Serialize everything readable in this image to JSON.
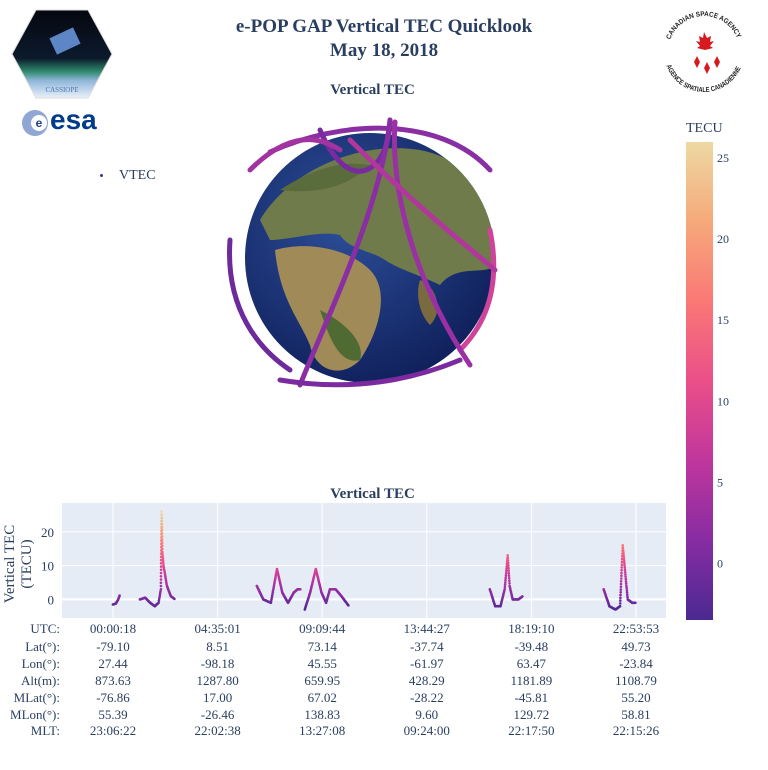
{
  "header": {
    "title_line1": "e-POP GAP Vertical TEC Quicklook",
    "title_line2": "May 18, 2018"
  },
  "logos": {
    "cassiope": "CASSIOPE",
    "esa": "esa",
    "csa_top": "CANADIAN SPACE AGENCY",
    "csa_bottom": "AGENCE SPATIALE CANADIENNE"
  },
  "globe": {
    "title": "Vertical TEC"
  },
  "legend": {
    "label": "VTEC"
  },
  "colorbar": {
    "title": "TECU",
    "ticks": [
      0,
      5,
      10,
      15,
      20,
      25
    ],
    "range": [
      -3.5,
      26
    ],
    "colors": [
      "#4b2991",
      "#872ca2",
      "#c0369d",
      "#ea4f88",
      "#fa7876",
      "#f6a97a",
      "#edd9a3"
    ]
  },
  "chart_data": {
    "type": "scatter",
    "title": "Vertical TEC",
    "ylabel": "Vertical TEC (TECU)",
    "ylim": [
      -5.5,
      28.5
    ],
    "yticks": [
      0,
      10,
      20
    ],
    "grid": true,
    "color_by": "TEC value",
    "passes": [
      [
        [
          "00:00",
          -1.5
        ],
        [
          "00:08",
          -1.2
        ],
        [
          "00:14",
          0
        ],
        [
          "00:19",
          1.5
        ]
      ],
      [
        [
          "01:11",
          0
        ],
        [
          "01:25",
          0.5
        ],
        [
          "01:38",
          -1
        ],
        [
          "01:50",
          -2
        ],
        [
          "02:00",
          -1
        ],
        [
          "02:06",
          3
        ],
        [
          "02:08",
          26
        ],
        [
          "02:10",
          14
        ],
        [
          "02:13",
          10
        ],
        [
          "02:22",
          4
        ],
        [
          "02:32",
          1
        ],
        [
          "02:43",
          0
        ]
      ],
      [
        [
          "06:18",
          4
        ],
        [
          "06:35",
          0
        ],
        [
          "06:55",
          -1
        ],
        [
          "07:11",
          9
        ],
        [
          "07:25",
          2
        ],
        [
          "07:40",
          -1
        ],
        [
          "07:55",
          2
        ],
        [
          "08:05",
          3
        ],
        [
          "08:14",
          3
        ]
      ],
      [
        [
          "08:24",
          -3
        ],
        [
          "08:38",
          2
        ],
        [
          "08:53",
          9
        ],
        [
          "09:08",
          2
        ],
        [
          "09:20",
          -1
        ],
        [
          "09:30",
          3
        ],
        [
          "09:45",
          3
        ],
        [
          "10:00",
          1
        ],
        [
          "10:20",
          -2
        ]
      ],
      [
        [
          "16:30",
          3
        ],
        [
          "16:44",
          -2
        ],
        [
          "16:58",
          -2
        ],
        [
          "17:09",
          3
        ],
        [
          "17:17",
          13
        ],
        [
          "17:22",
          4
        ],
        [
          "17:30",
          0
        ],
        [
          "17:45",
          0
        ],
        [
          "17:57",
          1
        ]
      ],
      [
        [
          "21:29",
          3
        ],
        [
          "21:44",
          -2
        ],
        [
          "22:00",
          -3
        ],
        [
          "22:12",
          -2
        ],
        [
          "22:19",
          16
        ],
        [
          "22:24",
          10
        ],
        [
          "22:32",
          0
        ],
        [
          "22:44",
          -1
        ],
        [
          "22:54",
          -1
        ]
      ]
    ]
  },
  "table": {
    "row_labels": [
      "UTC:",
      "Lat(°):",
      "Lon(°):",
      "Alt(m):",
      "MLat(°):",
      "MLon(°):",
      "MLT:"
    ],
    "columns": [
      [
        "00:00:18",
        "-79.10",
        "27.44",
        "873.63",
        "-76.86",
        "55.39",
        "23:06:22"
      ],
      [
        "04:35:01",
        "8.51",
        "-98.18",
        "1287.80",
        "17.00",
        "-26.46",
        "22:02:38"
      ],
      [
        "09:09:44",
        "73.14",
        "45.55",
        "659.95",
        "67.02",
        "138.83",
        "13:27:08"
      ],
      [
        "13:44:27",
        "-37.74",
        "-61.97",
        "428.29",
        "-28.22",
        "9.60",
        "09:24:00"
      ],
      [
        "18:19:10",
        "-39.48",
        "63.47",
        "1181.89",
        "-45.81",
        "129.72",
        "22:17:50"
      ],
      [
        "22:53:53",
        "49.73",
        "-23.84",
        "1108.79",
        "55.20",
        "58.81",
        "22:15:26"
      ]
    ]
  }
}
